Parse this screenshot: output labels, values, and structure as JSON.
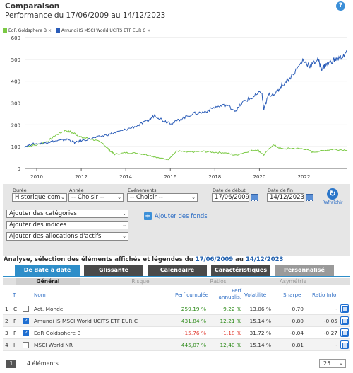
{
  "header": {
    "title": "Comparaison",
    "subtitle": "Performance du 17/06/2009 au 14/12/2023",
    "help_glyph": "?"
  },
  "legend": [
    {
      "label": "EdR Goldsphere B",
      "color": "#7ac943"
    },
    {
      "label": "Amundi IS MSCI World UCITS ETF EUR C",
      "color": "#2a5cb8"
    }
  ],
  "legend_remove_glyph": "×",
  "chart_data": {
    "type": "line",
    "title": "",
    "xlabel": "",
    "ylabel": "",
    "ylim": [
      0,
      600
    ],
    "xlim": [
      2009.46,
      2023.95
    ],
    "yticks": [
      0,
      100,
      200,
      300,
      400,
      500,
      600
    ],
    "xticks": [
      "2010",
      "2012",
      "2014",
      "2016",
      "2018",
      "2020",
      "2022"
    ],
    "grid": true,
    "series": [
      {
        "name": "Amundi IS MSCI World UCITS ETF EUR C",
        "color": "#2a5cb8",
        "x": [
          2009.46,
          2009.8,
          2010.3,
          2010.6,
          2011.0,
          2011.4,
          2011.7,
          2012.0,
          2012.5,
          2013.0,
          2013.5,
          2014.0,
          2014.5,
          2015.0,
          2015.3,
          2015.7,
          2016.1,
          2016.5,
          2017.0,
          2017.5,
          2018.0,
          2018.5,
          2018.95,
          2019.3,
          2019.7,
          2020.1,
          2020.2,
          2020.4,
          2020.8,
          2021.0,
          2021.5,
          2021.95,
          2022.3,
          2022.6,
          2022.8,
          2023.0,
          2023.3,
          2023.6,
          2023.95
        ],
        "y": [
          100,
          112,
          115,
          122,
          128,
          133,
          118,
          127,
          138,
          150,
          163,
          178,
          195,
          218,
          245,
          218,
          208,
          228,
          250,
          258,
          280,
          290,
          265,
          308,
          325,
          352,
          268,
          335,
          350,
          380,
          430,
          495,
          470,
          500,
          460,
          475,
          495,
          505,
          532
        ]
      },
      {
        "name": "EdR Goldsphere B",
        "color": "#7ac943",
        "x": [
          2009.46,
          2010.0,
          2010.5,
          2010.9,
          2011.3,
          2011.7,
          2012.0,
          2012.5,
          2013.0,
          2013.3,
          2013.5,
          2014.0,
          2014.5,
          2015.0,
          2015.5,
          2015.9,
          2016.3,
          2016.7,
          2017.0,
          2017.5,
          2018.0,
          2018.5,
          2018.9,
          2019.5,
          2019.9,
          2020.2,
          2020.6,
          2021.0,
          2021.5,
          2022.0,
          2022.4,
          2022.9,
          2023.3,
          2023.95
        ],
        "y": [
          100,
          108,
          125,
          155,
          175,
          160,
          142,
          135,
          112,
          80,
          65,
          72,
          70,
          62,
          48,
          42,
          80,
          75,
          76,
          78,
          74,
          72,
          60,
          78,
          86,
          62,
          108,
          90,
          92,
          90,
          75,
          82,
          88,
          84
        ]
      }
    ]
  },
  "controls": {
    "duree_label": "Durée",
    "duree_value": "Historique com",
    "annee_label": "Année",
    "annee_value": "-- Choisir --",
    "evenements_label": "Evénements",
    "evenements_value": "-- Choisir --",
    "date_debut_label": "Date de début",
    "date_debut_value": "17/06/2009",
    "date_fin_label": "Date de fin",
    "date_fin_value": "14/12/2023",
    "refresh_label": "Rafraîchir",
    "select_arrow": "⌄",
    "add_categories": "Ajouter des catégories",
    "add_indices": "Ajouter des indices",
    "add_allocations": "Ajouter des allocations d'actifs",
    "add_funds": "Ajouter des fonds",
    "plus_glyph": "+"
  },
  "analyse": {
    "prefix": "Analyse, sélection des éléments affichés et légendes du ",
    "date_from": "17/06/2009",
    "mid": " au ",
    "date_to": "14/12/2023"
  },
  "tabs": [
    {
      "label": "De date à date",
      "style": "active",
      "width": 92
    },
    {
      "label": "Glissante",
      "style": "dark",
      "width": 84
    },
    {
      "label": "Calendaire",
      "style": "dark",
      "width": 84
    },
    {
      "label": "Caractéristiques",
      "style": "dark",
      "width": 84
    },
    {
      "label": "Personnalisé",
      "style": "light",
      "width": 84
    }
  ],
  "subtabs": [
    "Général",
    "Risque",
    "Ratios",
    "Asymétrie"
  ],
  "table": {
    "headers": {
      "t": "T",
      "nom": "Nom",
      "perf_cumulee": "Perf cumulée",
      "perf_annualis_1": "Perf",
      "perf_annualis_2": "annualis.",
      "volatilite": "Volatilité",
      "sharpe": "Sharpe",
      "ratio_info": "Ratio Info"
    },
    "rows": [
      {
        "num": "1",
        "type": "C",
        "checked": false,
        "name": "Act. Monde",
        "perf_cum": "259,19 %",
        "perf_ann": "9,22 %",
        "vol": "13.06 %",
        "sharpe": "0.70",
        "ratio": "-",
        "sign": "pos"
      },
      {
        "num": "2",
        "type": "F",
        "checked": true,
        "name": "Amundi IS MSCI World UCITS ETF EUR C",
        "perf_cum": "431,84 %",
        "perf_ann": "12,21 %",
        "vol": "15.14 %",
        "sharpe": "0.80",
        "ratio": "-0,05",
        "sign": "pos"
      },
      {
        "num": "3",
        "type": "F",
        "checked": true,
        "name": "EdR Goldsphere B",
        "perf_cum": "-15,76 %",
        "perf_ann": "-1,18 %",
        "vol": "31.72 %",
        "sharpe": "-0.04",
        "ratio": "-0,27",
        "sign": "neg"
      },
      {
        "num": "4",
        "type": "I",
        "checked": false,
        "name": "MSCI World NR",
        "perf_cum": "445,07 %",
        "perf_ann": "12,40 %",
        "vol": "15.14 %",
        "sharpe": "0.81",
        "ratio": "-",
        "sign": "pos"
      }
    ]
  },
  "footer": {
    "page": "1",
    "count": "4 éléments",
    "page_size": "25"
  }
}
